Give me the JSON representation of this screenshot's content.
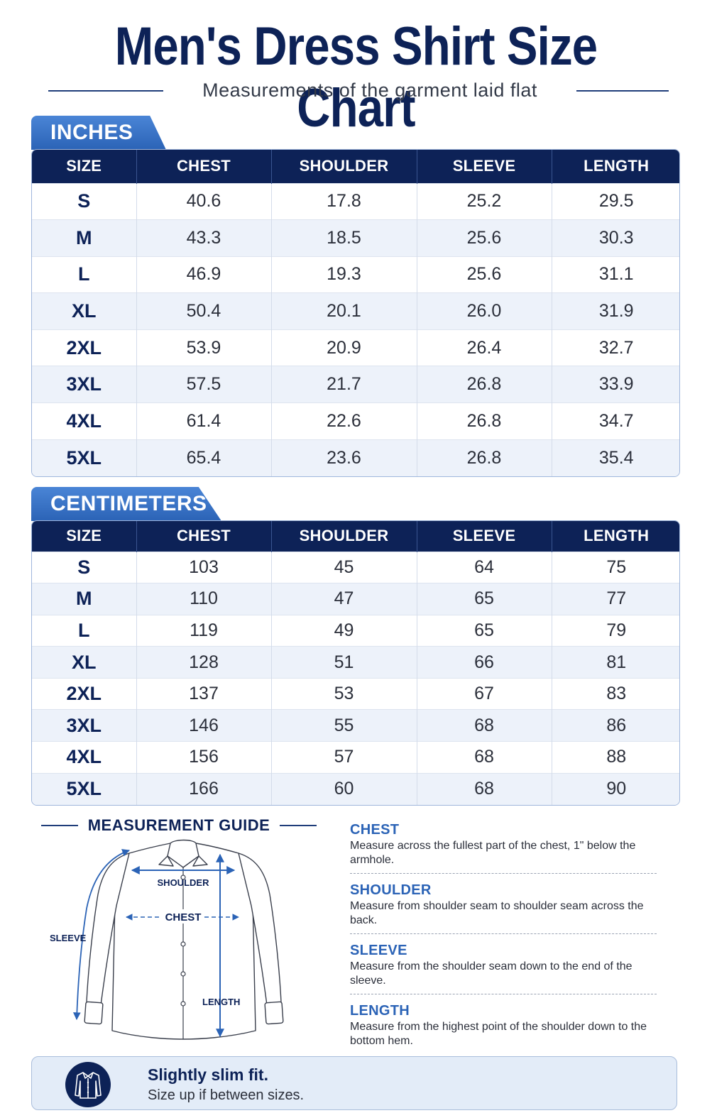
{
  "header": {
    "title": "Men's Dress Shirt Size Chart",
    "subtitle": "Measurements of the garment laid flat"
  },
  "inches": {
    "tab_label": "INCHES",
    "columns": [
      "SIZE",
      "CHEST",
      "SHOULDER",
      "SLEEVE",
      "LENGTH"
    ],
    "rows": [
      [
        "S",
        "40.6",
        "17.8",
        "25.2",
        "29.5"
      ],
      [
        "M",
        "43.3",
        "18.5",
        "25.6",
        "30.3"
      ],
      [
        "L",
        "46.9",
        "19.3",
        "25.6",
        "31.1"
      ],
      [
        "XL",
        "50.4",
        "20.1",
        "26.0",
        "31.9"
      ],
      [
        "2XL",
        "53.9",
        "20.9",
        "26.4",
        "32.7"
      ],
      [
        "3XL",
        "57.5",
        "21.7",
        "26.8",
        "33.9"
      ],
      [
        "4XL",
        "61.4",
        "22.6",
        "26.8",
        "34.7"
      ],
      [
        "5XL",
        "65.4",
        "23.6",
        "26.8",
        "35.4"
      ]
    ]
  },
  "centimeters": {
    "tab_label": "CENTIMETERS",
    "columns": [
      "SIZE",
      "CHEST",
      "SHOULDER",
      "SLEEVE",
      "LENGTH"
    ],
    "rows": [
      [
        "S",
        "103",
        "45",
        "64",
        "75"
      ],
      [
        "M",
        "110",
        "47",
        "65",
        "77"
      ],
      [
        "L",
        "119",
        "49",
        "65",
        "79"
      ],
      [
        "XL",
        "128",
        "51",
        "66",
        "81"
      ],
      [
        "2XL",
        "137",
        "53",
        "67",
        "83"
      ],
      [
        "3XL",
        "146",
        "55",
        "68",
        "86"
      ],
      [
        "4XL",
        "156",
        "57",
        "68",
        "88"
      ],
      [
        "5XL",
        "166",
        "60",
        "68",
        "90"
      ]
    ]
  },
  "guide": {
    "heading": "MEASUREMENT GUIDE",
    "diagram_labels": {
      "shoulder": "SHOULDER",
      "chest": "CHEST",
      "sleeve": "SLEEVE",
      "length": "LENGTH"
    },
    "items": [
      {
        "title": "CHEST",
        "description": "Measure across the fullest part of the chest, 1\" below the armhole."
      },
      {
        "title": "SHOULDER",
        "description": "Measure from shoulder seam to shoulder seam across the back."
      },
      {
        "title": "SLEEVE",
        "description": "Measure from the shoulder seam down to the end of the sleeve."
      },
      {
        "title": "LENGTH",
        "description": "Measure from the highest point of the shoulder down to the bottom hem."
      }
    ]
  },
  "fit_note": {
    "icon": "shirt-icon",
    "title": "Slightly slim fit.",
    "subtitle": "Size up if between sizes."
  },
  "colors": {
    "navy": "#0d2257",
    "accent_blue": "#2b63b6",
    "row_alt": "#edf2fa"
  }
}
